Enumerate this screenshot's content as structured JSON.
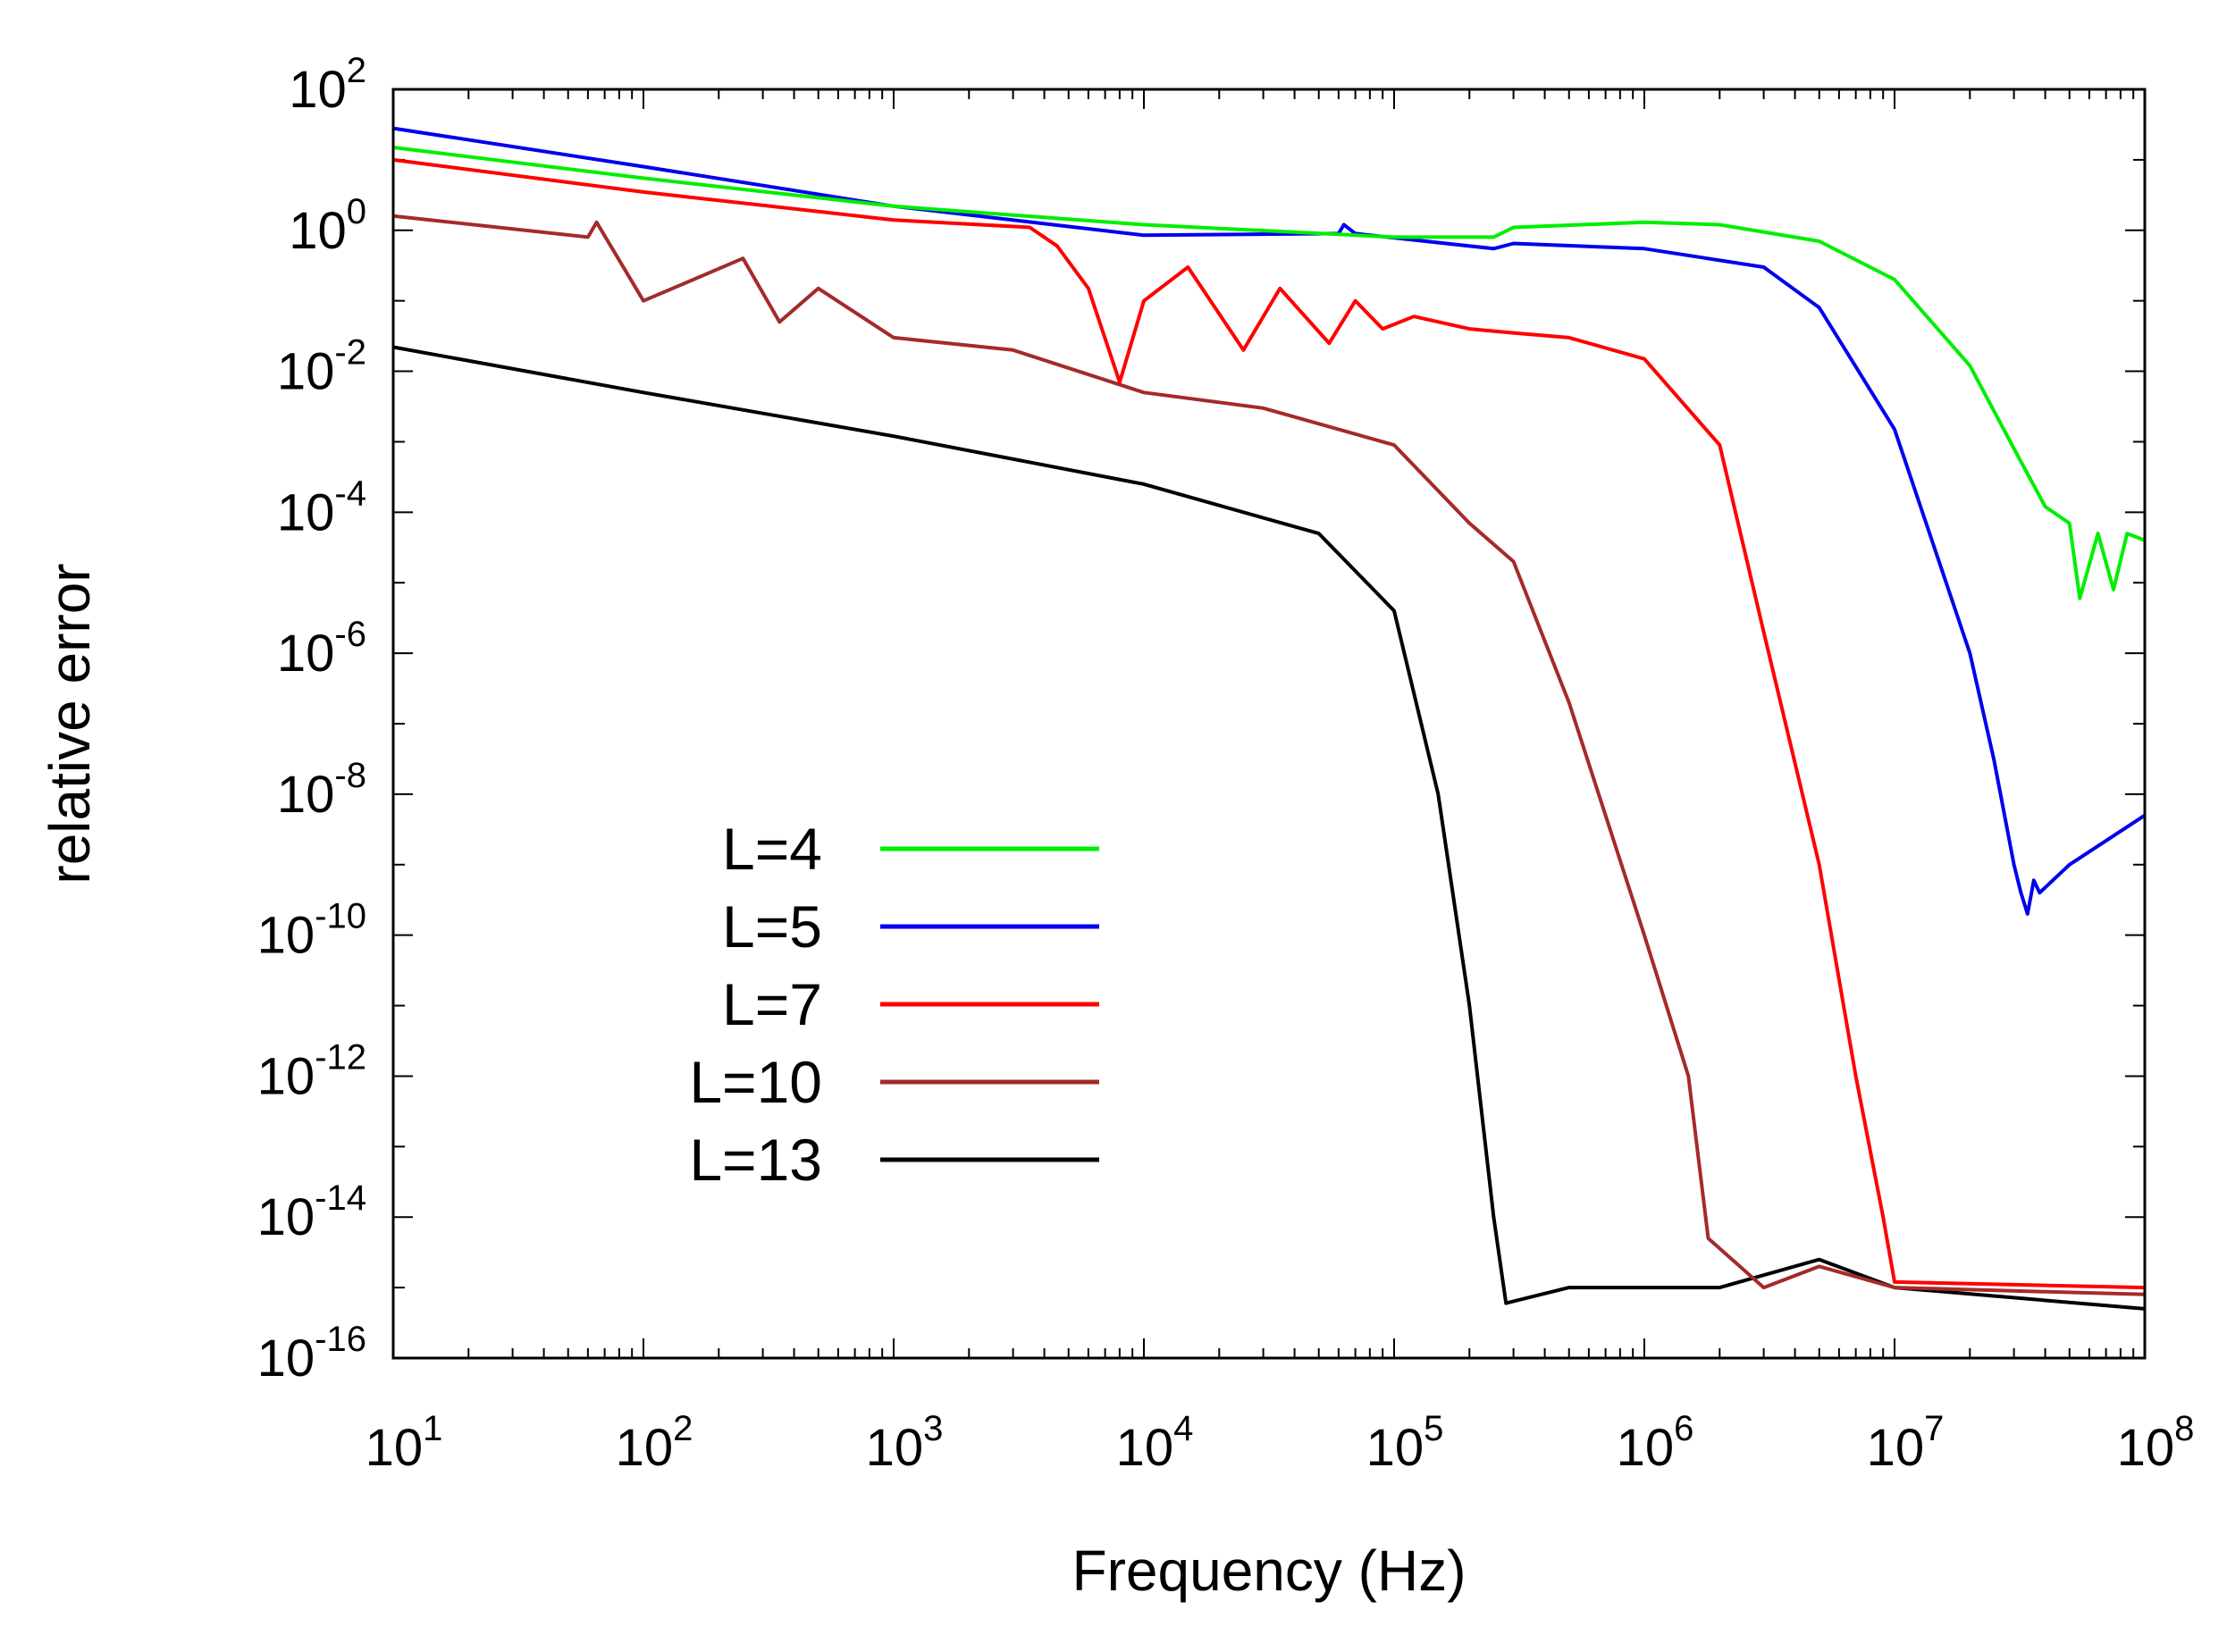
{
  "chart_data": {
    "type": "line",
    "xlabel": "Frequency (Hz)",
    "ylabel": "relative error",
    "xscale": "log",
    "yscale": "log",
    "xlim": [
      10,
      100000000
    ],
    "ylim": [
      1e-16,
      100
    ],
    "x_ticks": [
      {
        "base": "10",
        "exp": "1",
        "value": 10
      },
      {
        "base": "10",
        "exp": "2",
        "value": 100
      },
      {
        "base": "10",
        "exp": "3",
        "value": 1000
      },
      {
        "base": "10",
        "exp": "4",
        "value": 10000
      },
      {
        "base": "10",
        "exp": "5",
        "value": 100000
      },
      {
        "base": "10",
        "exp": "6",
        "value": 1000000
      },
      {
        "base": "10",
        "exp": "7",
        "value": 10000000
      },
      {
        "base": "10",
        "exp": "8",
        "value": 100000000
      }
    ],
    "y_ticks": [
      {
        "base": "10",
        "exp": "2",
        "value": 100
      },
      {
        "base": "10",
        "exp": "0",
        "value": 1
      },
      {
        "base": "10",
        "exp": "-2",
        "value": 0.01
      },
      {
        "base": "10",
        "exp": "-4",
        "value": 0.0001
      },
      {
        "base": "10",
        "exp": "-6",
        "value": 1e-06
      },
      {
        "base": "10",
        "exp": "-8",
        "value": 1e-08
      },
      {
        "base": "10",
        "exp": "-10",
        "value": 1e-10
      },
      {
        "base": "10",
        "exp": "-12",
        "value": 1e-12
      },
      {
        "base": "10",
        "exp": "-14",
        "value": 1e-14
      },
      {
        "base": "10",
        "exp": "-16",
        "value": 1e-16
      }
    ],
    "legend_position": "lower-left",
    "grid": false,
    "series": [
      {
        "name": "L=4",
        "color": "#00ee00",
        "points": [
          [
            10,
            15
          ],
          [
            100,
            5.5
          ],
          [
            1000,
            2.2
          ],
          [
            10000,
            1.2
          ],
          [
            100000,
            0.8
          ],
          [
            250000,
            0.8
          ],
          [
            300000,
            1.1
          ],
          [
            1000000,
            1.3
          ],
          [
            2000000,
            1.2
          ],
          [
            5000000,
            0.7
          ],
          [
            10000000,
            0.2
          ],
          [
            20000000,
            0.012
          ],
          [
            30000000,
            0.0008
          ],
          [
            40000000,
            0.00012
          ],
          [
            50000000,
            7e-05
          ],
          [
            55000000,
            6e-06
          ],
          [
            65000000,
            5e-05
          ],
          [
            75000000,
            8e-06
          ],
          [
            85000000,
            5e-05
          ],
          [
            100000000,
            4e-05
          ]
        ]
      },
      {
        "name": "L=5",
        "color": "#0000ee",
        "points": [
          [
            10,
            28
          ],
          [
            100,
            8
          ],
          [
            1000,
            2.2
          ],
          [
            10000,
            0.85
          ],
          [
            60000,
            0.9
          ],
          [
            63000,
            1.2
          ],
          [
            70000,
            0.9
          ],
          [
            250000,
            0.55
          ],
          [
            300000,
            0.65
          ],
          [
            1000000,
            0.55
          ],
          [
            3000000,
            0.3
          ],
          [
            5000000,
            0.08
          ],
          [
            10000000,
            0.0015
          ],
          [
            20000000,
            1e-06
          ],
          [
            25000000,
            3e-08
          ],
          [
            30000000,
            1e-09
          ],
          [
            32000000,
            4e-10
          ],
          [
            34000000,
            2e-10
          ],
          [
            36000000,
            6e-10
          ],
          [
            38000000,
            4e-10
          ],
          [
            50000000,
            1e-09
          ],
          [
            100000000,
            5e-09
          ]
        ]
      },
      {
        "name": "L=7",
        "color": "#ff0000",
        "points": [
          [
            10,
            10
          ],
          [
            100,
            3.5
          ],
          [
            1000,
            1.4
          ],
          [
            3500,
            1.1
          ],
          [
            4500,
            0.6
          ],
          [
            6000,
            0.15
          ],
          [
            8000,
            0.007
          ],
          [
            10000,
            0.1
          ],
          [
            15000,
            0.3
          ],
          [
            25000,
            0.02
          ],
          [
            35000,
            0.15
          ],
          [
            55000,
            0.025
          ],
          [
            70000,
            0.1
          ],
          [
            90000,
            0.04
          ],
          [
            120000,
            0.06
          ],
          [
            200000,
            0.04
          ],
          [
            300000,
            0.035
          ],
          [
            500000,
            0.03
          ],
          [
            1000000,
            0.015
          ],
          [
            2000000,
            0.0009
          ],
          [
            3000000,
            2e-06
          ],
          [
            5000000,
            1e-09
          ],
          [
            7000000,
            1e-12
          ],
          [
            9000000,
            1e-14
          ],
          [
            10000000,
            1.2e-15
          ],
          [
            100000000,
            1e-15
          ]
        ]
      },
      {
        "name": "L=10",
        "color": "#a52a2a",
        "points": [
          [
            10,
            1.6
          ],
          [
            60,
            0.8
          ],
          [
            65,
            1.3
          ],
          [
            100,
            0.1
          ],
          [
            250,
            0.4
          ],
          [
            350,
            0.05
          ],
          [
            500,
            0.15
          ],
          [
            1000,
            0.03
          ],
          [
            3000,
            0.02
          ],
          [
            10000,
            0.005
          ],
          [
            30000,
            0.003
          ],
          [
            100000,
            0.0009
          ],
          [
            200000,
            7e-05
          ],
          [
            300000,
            2e-05
          ],
          [
            500000,
            2e-07
          ],
          [
            1000000,
            1e-10
          ],
          [
            1500000,
            1e-12
          ],
          [
            1800000,
            5e-15
          ],
          [
            3000000,
            1e-15
          ],
          [
            5000000,
            2e-15
          ],
          [
            10000000,
            1e-15
          ],
          [
            100000000,
            8e-16
          ]
        ]
      },
      {
        "name": "L=13",
        "color": "#000000",
        "points": [
          [
            10,
            0.022
          ],
          [
            100,
            0.005
          ],
          [
            1000,
            0.0012
          ],
          [
            10000,
            0.00025
          ],
          [
            50000,
            5e-05
          ],
          [
            100000,
            4e-06
          ],
          [
            150000,
            1e-08
          ],
          [
            200000,
            1e-11
          ],
          [
            250000,
            1e-14
          ],
          [
            280000,
            6e-16
          ],
          [
            500000,
            1e-15
          ],
          [
            2000000,
            1e-15
          ],
          [
            5000000,
            2.5e-15
          ],
          [
            10000000,
            1e-15
          ],
          [
            100000000,
            5e-16
          ]
        ]
      }
    ]
  }
}
